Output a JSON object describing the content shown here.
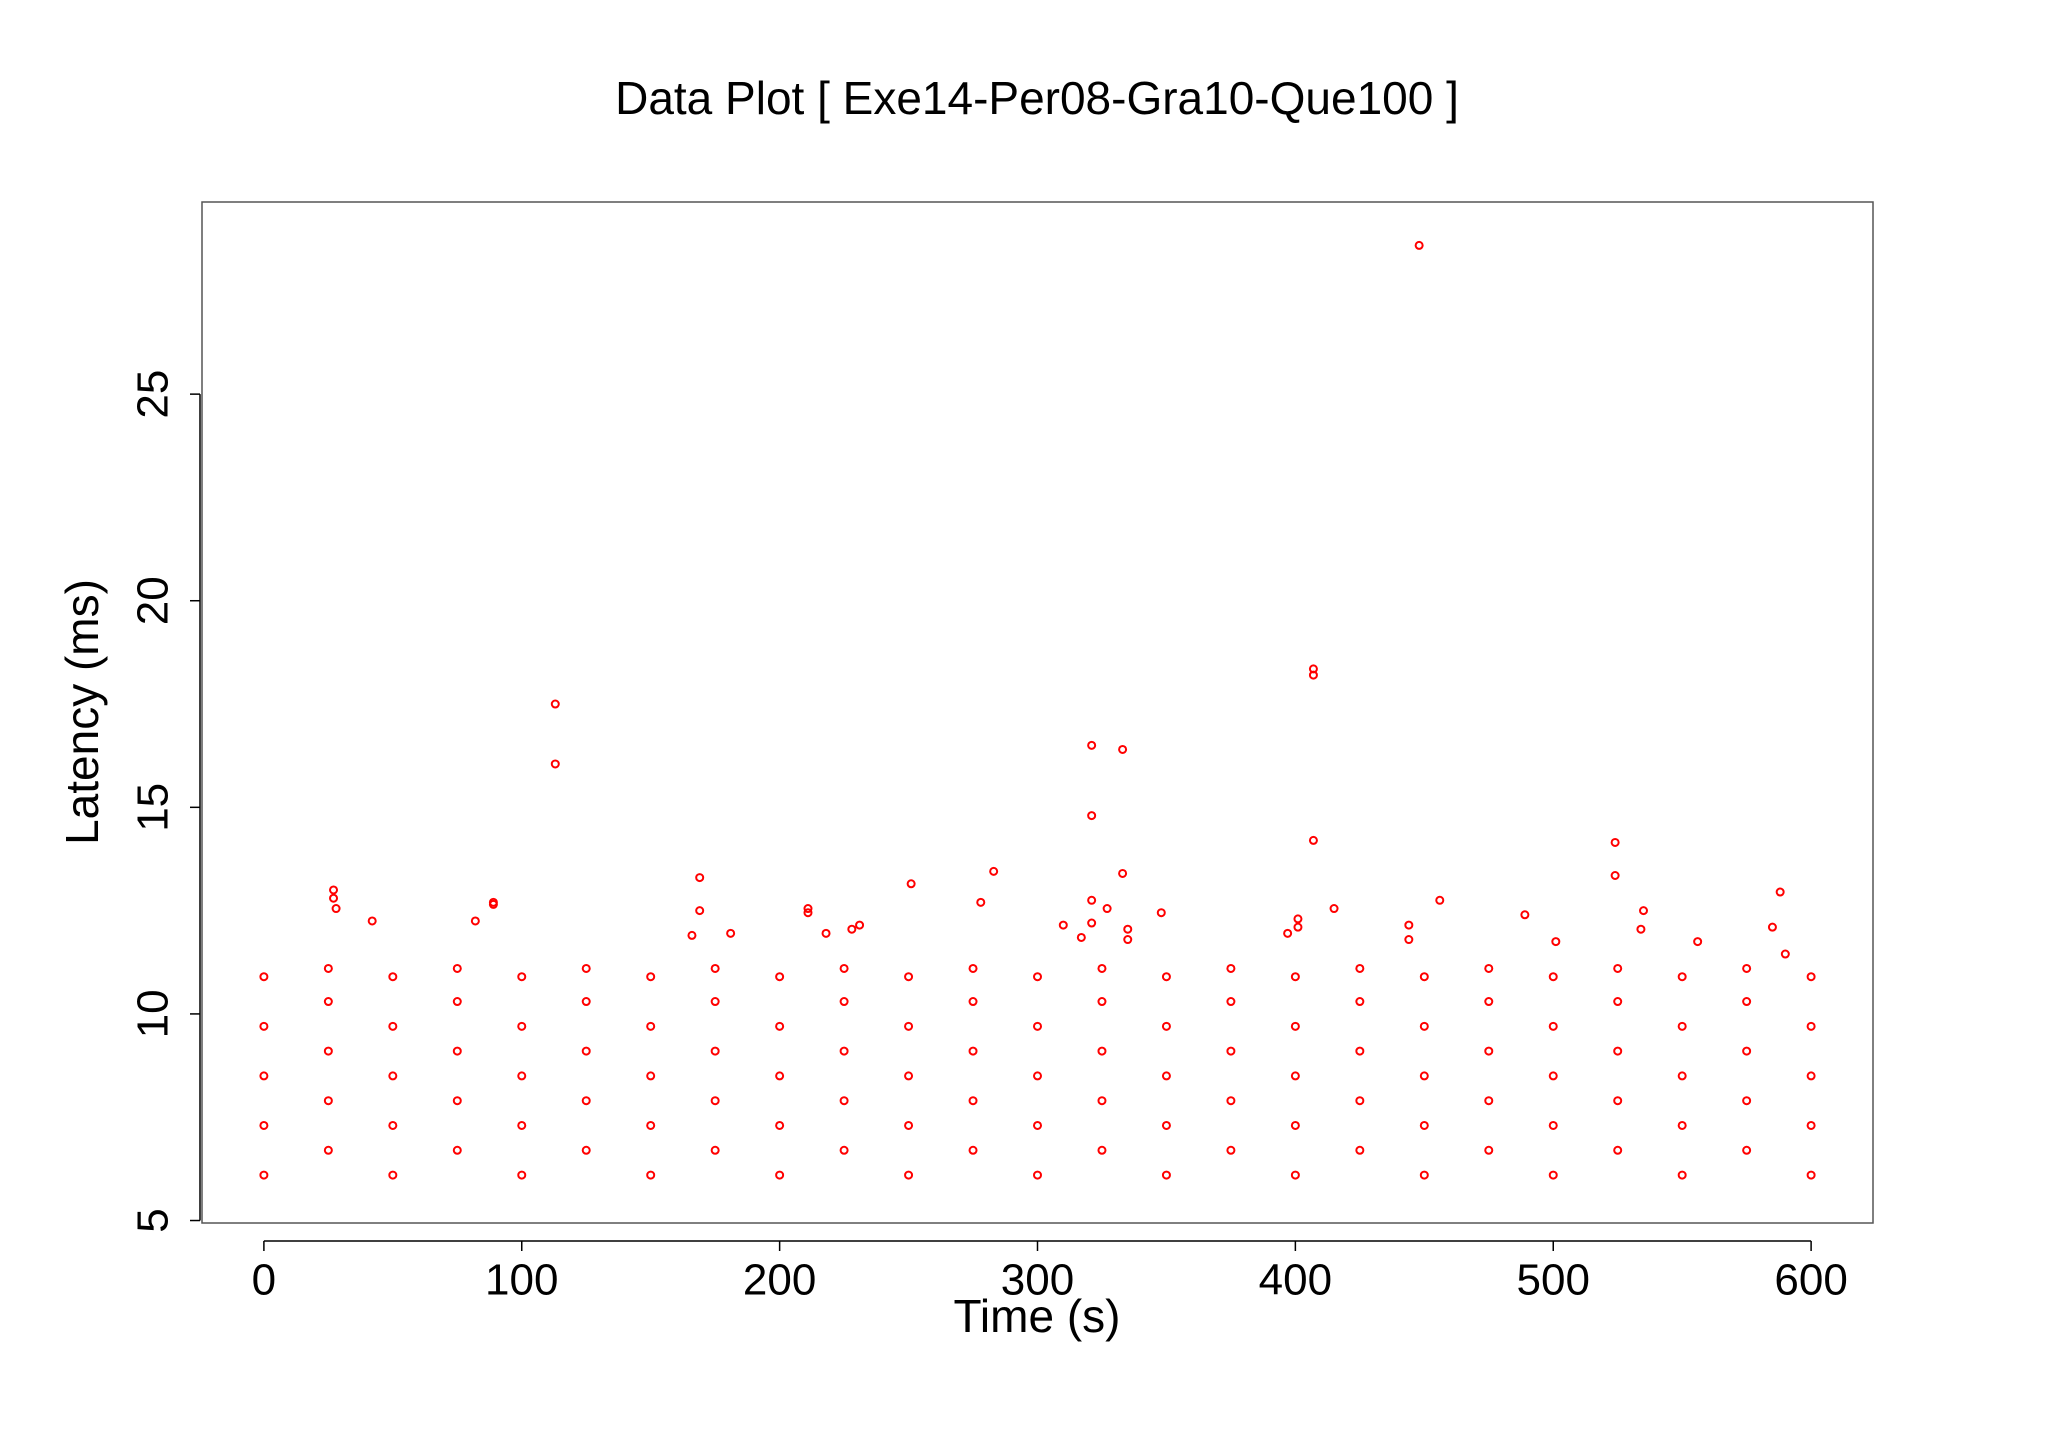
{
  "chart_data": {
    "type": "scatter",
    "title": "Data Plot [ Exe14-Per08-Gra10-Que100 ]",
    "x_label": "Time (s)",
    "y_label": "Latency (ms)",
    "xlim": [
      -24,
      624
    ],
    "ylim": [
      4.94,
      29.65
    ],
    "xticks": [
      0,
      100,
      200,
      300,
      400,
      500,
      600
    ],
    "yticks": [
      5,
      10,
      15,
      20,
      25
    ],
    "series": [
      {
        "color": "#ff0000",
        "x": [
          0,
          0,
          0,
          0,
          0,
          25,
          25,
          25,
          25,
          25,
          50,
          50,
          50,
          50,
          50,
          75,
          75,
          75,
          75,
          75,
          100,
          100,
          100,
          100,
          100,
          125,
          125,
          125,
          125,
          125,
          150,
          150,
          150,
          150,
          150,
          175,
          175,
          175,
          175,
          175,
          200,
          200,
          200,
          200,
          200,
          225,
          225,
          225,
          225,
          225,
          250,
          250,
          250,
          250,
          250,
          275,
          275,
          275,
          275,
          275,
          300,
          300,
          300,
          300,
          300,
          325,
          325,
          325,
          325,
          325,
          350,
          350,
          350,
          350,
          350,
          375,
          375,
          375,
          375,
          375,
          400,
          400,
          400,
          400,
          400,
          425,
          425,
          425,
          425,
          425,
          450,
          450,
          450,
          450,
          450,
          475,
          475,
          475,
          475,
          475,
          500,
          500,
          500,
          500,
          500,
          525,
          525,
          525,
          525,
          525,
          550,
          550,
          550,
          550,
          550,
          575,
          575,
          575,
          575,
          575,
          600,
          600,
          600,
          600,
          600,
          27,
          27,
          28,
          42,
          82,
          89,
          89,
          113,
          113,
          166,
          169,
          169,
          181,
          211,
          211,
          218,
          228,
          231,
          251,
          278,
          283,
          310,
          317,
          321,
          321,
          321,
          321,
          327,
          333,
          333,
          335,
          335,
          348,
          397,
          401,
          401,
          407,
          407,
          407,
          415,
          444,
          444,
          448,
          456,
          489,
          501,
          524,
          524,
          534,
          535,
          556,
          585,
          588,
          590
        ],
        "y": [
          6.1,
          7.3,
          8.5,
          9.7,
          10.9,
          6.7,
          7.9,
          9.1,
          10.3,
          11.1,
          6.1,
          7.3,
          8.5,
          9.7,
          10.9,
          6.7,
          7.9,
          9.1,
          10.3,
          11.1,
          6.1,
          7.3,
          8.5,
          9.7,
          10.9,
          6.7,
          7.9,
          9.1,
          10.3,
          11.1,
          6.1,
          7.3,
          8.5,
          9.7,
          10.9,
          6.7,
          7.9,
          9.1,
          10.3,
          11.1,
          6.1,
          7.3,
          8.5,
          9.7,
          10.9,
          6.7,
          7.9,
          9.1,
          10.3,
          11.1,
          6.1,
          7.3,
          8.5,
          9.7,
          10.9,
          6.7,
          7.9,
          9.1,
          10.3,
          11.1,
          6.1,
          7.3,
          8.5,
          9.7,
          10.9,
          6.7,
          7.9,
          9.1,
          10.3,
          11.1,
          6.1,
          7.3,
          8.5,
          9.7,
          10.9,
          6.7,
          7.9,
          9.1,
          10.3,
          11.1,
          6.1,
          7.3,
          8.5,
          9.7,
          10.9,
          6.7,
          7.9,
          9.1,
          10.3,
          11.1,
          6.1,
          7.3,
          8.5,
          9.7,
          10.9,
          6.7,
          7.9,
          9.1,
          10.3,
          11.1,
          6.1,
          7.3,
          8.5,
          9.7,
          10.9,
          6.7,
          7.9,
          9.1,
          10.3,
          11.1,
          6.1,
          7.3,
          8.5,
          9.7,
          10.9,
          6.7,
          7.9,
          9.1,
          10.3,
          11.1,
          6.1,
          7.3,
          8.5,
          9.7,
          10.9,
          13.0,
          12.8,
          12.55,
          12.25,
          12.25,
          12.7,
          12.65,
          17.5,
          16.05,
          11.9,
          13.3,
          12.5,
          11.95,
          12.55,
          12.45,
          11.95,
          12.05,
          12.15,
          13.15,
          12.7,
          13.45,
          12.15,
          11.85,
          16.5,
          14.8,
          12.75,
          12.2,
          12.55,
          16.4,
          13.4,
          12.05,
          11.8,
          12.45,
          11.95,
          12.3,
          12.1,
          18.35,
          18.2,
          14.2,
          12.55,
          12.15,
          11.8,
          28.6,
          12.75,
          12.4,
          11.75,
          14.15,
          13.35,
          12.05,
          12.5,
          11.75,
          12.1,
          12.95,
          11.45
        ]
      }
    ]
  }
}
